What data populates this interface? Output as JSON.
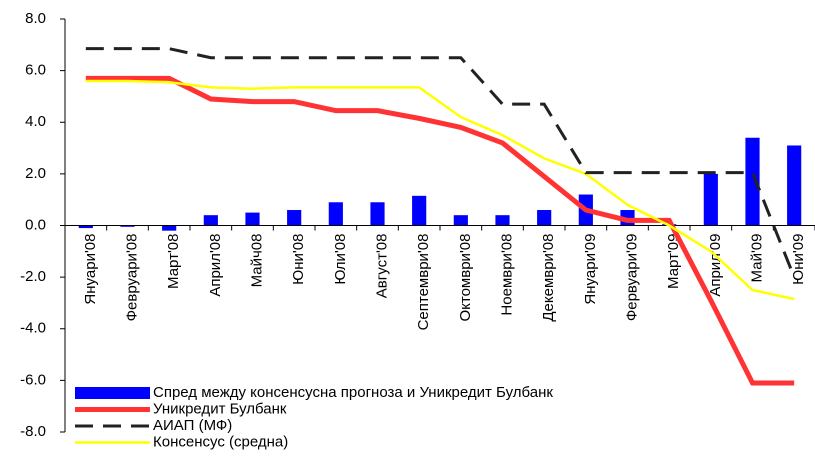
{
  "chart_data": {
    "type": "bar",
    "categories": [
      "Януари'08",
      "Февруари'08",
      "Март'08",
      "Април'08",
      "Майч08",
      "Юни'08",
      "Юли'08",
      "Август'08",
      "Септември'08",
      "Октомври'08",
      "Ноември'08",
      "Декември'08",
      "Януари'09",
      "Фервуари'09",
      "Март'09",
      "Април'09",
      "Май'09",
      "Юни'09"
    ],
    "series": [
      {
        "name": "Спред между консенсусна прогноза и Уникредит Булбанк",
        "type": "bar",
        "color": "#0000ff",
        "values": [
          -0.1,
          -0.05,
          -0.2,
          0.4,
          0.5,
          0.6,
          0.9,
          0.9,
          1.15,
          0.4,
          0.4,
          0.6,
          1.2,
          0.6,
          0.05,
          2.0,
          3.4,
          3.1
        ]
      },
      {
        "name": "Уникредит Булбанк",
        "type": "line",
        "color": "#ff3333",
        "width": 5,
        "dash": false,
        "values": [
          5.7,
          5.7,
          5.7,
          4.9,
          4.8,
          4.8,
          4.45,
          4.45,
          4.15,
          3.8,
          3.2,
          1.9,
          0.6,
          0.2,
          0.2,
          -2.9,
          -6.1,
          -6.1
        ]
      },
      {
        "name": "АИАП (МФ)",
        "type": "line",
        "color": "#222222",
        "width": 3,
        "dash": true,
        "values": [
          6.85,
          6.85,
          6.85,
          6.5,
          6.5,
          6.5,
          6.5,
          6.5,
          6.5,
          6.5,
          4.7,
          4.7,
          2.05,
          2.05,
          2.05,
          2.05,
          2.05,
          -2.0
        ]
      },
      {
        "name": "Консенсус (средна)",
        "type": "line",
        "color": "#ffff00",
        "width": 2.5,
        "dash": false,
        "values": [
          5.6,
          5.6,
          5.55,
          5.35,
          5.3,
          5.35,
          5.35,
          5.35,
          5.35,
          4.2,
          3.5,
          2.6,
          2.0,
          0.8,
          0.0,
          -1.0,
          -2.5,
          -2.85
        ]
      }
    ],
    "ylim": [
      -8,
      8
    ],
    "yticks": [
      {
        "value": -8,
        "label": "-8.0"
      },
      {
        "value": -6,
        "label": "-6.0"
      },
      {
        "value": -4,
        "label": "-4.0"
      },
      {
        "value": -2,
        "label": "-2.0"
      },
      {
        "value": 0,
        "label": "0.0"
      },
      {
        "value": 2,
        "label": "2.0"
      },
      {
        "value": 4,
        "label": "4.0"
      },
      {
        "value": 6,
        "label": "6.0"
      },
      {
        "value": 8,
        "label": "8.0"
      }
    ],
    "legend": "lower left"
  }
}
